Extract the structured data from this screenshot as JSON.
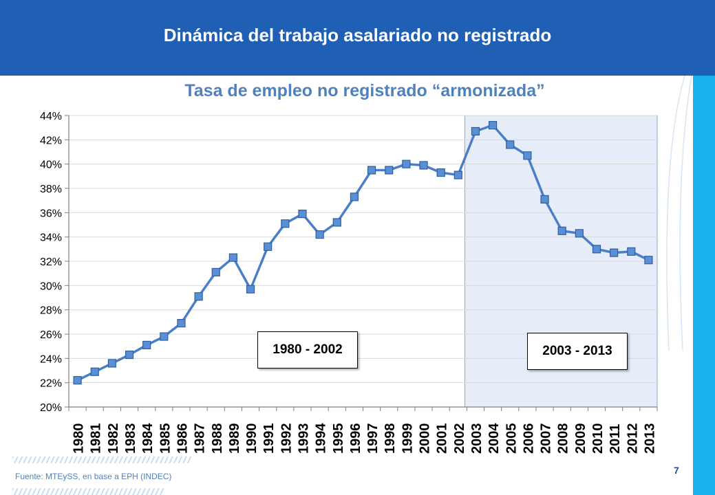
{
  "header": {
    "title": "Dinámica del trabajo asalariado no registrado",
    "color": "#1f5fb4"
  },
  "subtitle": "Tasa de empleo no registrado “armonizada”",
  "chart_data": {
    "type": "line",
    "title": "Tasa de empleo no registrado “armonizada”",
    "xlabel": "",
    "ylabel": "",
    "x": [
      "1980",
      "1981",
      "1982",
      "1983",
      "1984",
      "1985",
      "1986",
      "1987",
      "1988",
      "1989",
      "1990",
      "1991",
      "1992",
      "1993",
      "1994",
      "1995",
      "1996",
      "1997",
      "1998",
      "1999",
      "2000",
      "2001",
      "2002",
      "2003",
      "2004",
      "2005",
      "2006",
      "2007",
      "2008",
      "2009",
      "2010",
      "2011",
      "2012",
      "2013"
    ],
    "series": [
      {
        "values": [
          22.2,
          22.9,
          23.6,
          24.3,
          25.1,
          25.8,
          26.9,
          29.1,
          31.1,
          32.3,
          29.7,
          33.2,
          35.1,
          35.9,
          34.2,
          35.2,
          37.3,
          39.5,
          39.5,
          40.0,
          39.9,
          39.3,
          39.1,
          42.7,
          43.2,
          41.6,
          40.7,
          37.1,
          34.5,
          34.3,
          33.0,
          32.7,
          32.8,
          32.1
        ],
        "color": "#4a7fc8"
      }
    ],
    "ylim": [
      20,
      44
    ],
    "yticks": [
      20,
      22,
      24,
      26,
      28,
      30,
      32,
      34,
      36,
      38,
      40,
      42,
      44
    ],
    "ytick_format": "%",
    "grid": "horizontal",
    "legend": "none",
    "shaded_region": {
      "from": "2003",
      "to": "2013",
      "color": "#e6edf8"
    },
    "annotations": [
      {
        "text": "1980 - 2002",
        "period": "1980-2002"
      },
      {
        "text": "2003 - 2013",
        "period": "2003-2013"
      }
    ]
  },
  "footer": {
    "source": "Fuente: MTEySS, en base a EPH (INDEC)",
    "page": "7"
  },
  "colors": {
    "accent": "#1ab0ef",
    "subtitle": "#4f81bd"
  }
}
